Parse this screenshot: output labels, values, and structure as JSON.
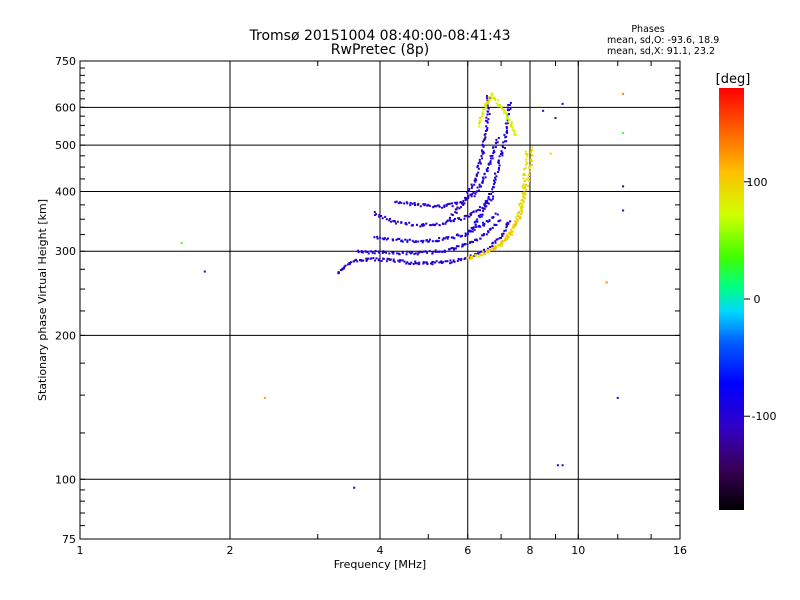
{
  "chart_data": {
    "type": "scatter",
    "title": "Tromsø 20151004 08:40:00-08:41:43",
    "subtitle": "RwPretec (8p)",
    "xlabel": "Frequency [MHz]",
    "ylabel": "Stationary phase Virtual Height [km]",
    "x_scale": "log",
    "y_scale": "log",
    "xlim": [
      1,
      16
    ],
    "ylim": [
      75,
      750
    ],
    "x_ticks": [
      1,
      2,
      4,
      6,
      8,
      10,
      16
    ],
    "y_ticks": [
      75,
      100,
      200,
      300,
      400,
      500,
      600,
      750
    ],
    "grid": true,
    "stats": {
      "heading": "Phases",
      "line_o": "mean, sd,O: -93.6, 18.9",
      "line_x": "mean, sd,X:  91.1, 23.2"
    },
    "colorbar": {
      "label": "[deg]",
      "range": [
        -180,
        180
      ],
      "ticks": [
        100,
        0,
        -100
      ]
    },
    "trace_segments": [
      {
        "phase": -100,
        "points": [
          [
            3.3,
            270
          ],
          [
            3.5,
            285
          ],
          [
            3.8,
            289
          ],
          [
            4.2,
            287
          ],
          [
            4.6,
            284
          ],
          [
            5.0,
            283
          ],
          [
            5.5,
            285
          ],
          [
            6.0,
            290
          ],
          [
            6.5,
            300
          ],
          [
            7.0,
            320
          ],
          [
            7.3,
            350
          ]
        ]
      },
      {
        "phase": -95,
        "points": [
          [
            3.6,
            300
          ],
          [
            4.0,
            298
          ],
          [
            4.5,
            297
          ],
          [
            5.0,
            298
          ],
          [
            5.5,
            302
          ],
          [
            6.0,
            310
          ],
          [
            6.5,
            325
          ],
          [
            7.0,
            350
          ]
        ]
      },
      {
        "phase": -90,
        "points": [
          [
            3.9,
            320
          ],
          [
            4.4,
            316
          ],
          [
            4.9,
            315
          ],
          [
            5.4,
            318
          ],
          [
            5.9,
            325
          ],
          [
            6.4,
            340
          ],
          [
            6.9,
            360
          ]
        ]
      },
      {
        "phase": -100,
        "points": [
          [
            3.9,
            360
          ],
          [
            4.3,
            345
          ],
          [
            4.8,
            340
          ],
          [
            5.3,
            342
          ],
          [
            5.8,
            350
          ],
          [
            6.3,
            365
          ],
          [
            6.8,
            390
          ]
        ]
      },
      {
        "phase": -95,
        "points": [
          [
            4.3,
            380
          ],
          [
            4.8,
            375
          ],
          [
            5.3,
            372
          ],
          [
            5.8,
            378
          ],
          [
            6.2,
            395
          ],
          [
            6.5,
            430
          ],
          [
            6.7,
            470
          ],
          [
            6.9,
            520
          ]
        ]
      },
      {
        "phase": -105,
        "points": [
          [
            5.5,
            350
          ],
          [
            5.9,
            380
          ],
          [
            6.2,
            420
          ],
          [
            6.4,
            470
          ],
          [
            6.5,
            520
          ],
          [
            6.6,
            580
          ],
          [
            6.6,
            640
          ]
        ]
      },
      {
        "phase": -90,
        "points": [
          [
            6.1,
            330
          ],
          [
            6.4,
            360
          ],
          [
            6.7,
            400
          ],
          [
            6.9,
            450
          ],
          [
            7.1,
            500
          ],
          [
            7.2,
            560
          ],
          [
            7.3,
            620
          ]
        ]
      },
      {
        "phase": 90,
        "points": [
          [
            6.0,
            290
          ],
          [
            6.4,
            295
          ],
          [
            6.8,
            305
          ],
          [
            7.2,
            320
          ],
          [
            7.5,
            345
          ],
          [
            7.7,
            380
          ],
          [
            7.8,
            430
          ],
          [
            7.9,
            490
          ]
        ]
      },
      {
        "phase": 100,
        "points": [
          [
            6.6,
            300
          ],
          [
            7.0,
            310
          ],
          [
            7.3,
            325
          ],
          [
            7.6,
            350
          ],
          [
            7.8,
            390
          ],
          [
            8.0,
            440
          ],
          [
            8.1,
            500
          ]
        ]
      },
      {
        "phase": 80,
        "points": [
          [
            6.3,
            550
          ],
          [
            6.5,
            600
          ],
          [
            6.7,
            640
          ],
          [
            7.0,
            600
          ],
          [
            7.3,
            560
          ],
          [
            7.5,
            520
          ]
        ]
      }
    ],
    "points": [
      {
        "x": 1.6,
        "y": 312,
        "phase": 40
      },
      {
        "x": 1.78,
        "y": 272,
        "phase": -90
      },
      {
        "x": 2.35,
        "y": 148,
        "phase": 120
      },
      {
        "x": 3.55,
        "y": 96,
        "phase": -95
      },
      {
        "x": 9.1,
        "y": 107,
        "phase": -100
      },
      {
        "x": 9.3,
        "y": 107,
        "phase": -100
      },
      {
        "x": 9.0,
        "y": 570,
        "phase": -100
      },
      {
        "x": 9.3,
        "y": 610,
        "phase": -90
      },
      {
        "x": 11.4,
        "y": 258,
        "phase": 130
      },
      {
        "x": 12.0,
        "y": 148,
        "phase": -95
      },
      {
        "x": 12.3,
        "y": 640,
        "phase": 130
      },
      {
        "x": 12.3,
        "y": 530,
        "phase": 30
      },
      {
        "x": 12.3,
        "y": 410,
        "phase": -135
      },
      {
        "x": 12.3,
        "y": 365,
        "phase": -100
      },
      {
        "x": 8.8,
        "y": 480,
        "phase": 100
      },
      {
        "x": 8.5,
        "y": 590,
        "phase": -100
      }
    ]
  }
}
